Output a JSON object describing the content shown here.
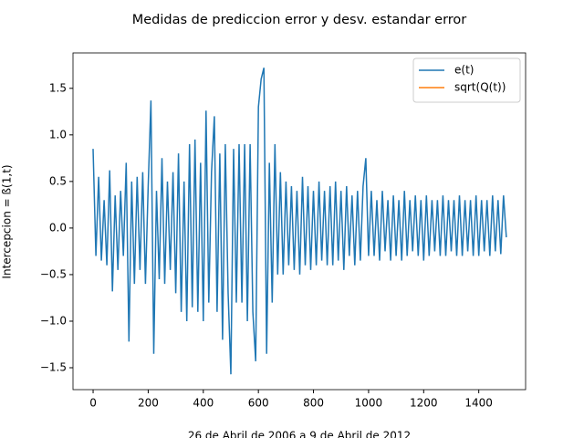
{
  "chart_data": {
    "type": "line",
    "title": "Medidas de prediccion error y desv. estandar error",
    "xlabel": "26 de Abril de 2006 a 9 de Abril de 2012",
    "ylabel": "Intercepcion = ß(1,t)",
    "legend": "upper right",
    "grid": false,
    "xlim": [
      -73,
      1570
    ],
    "ylim": [
      -1.735,
      1.88
    ],
    "xticks": [
      0,
      200,
      400,
      600,
      800,
      1000,
      1200,
      1400
    ],
    "yticks": [
      {
        "value": -1.5,
        "label": "−1.5"
      },
      {
        "value": -1,
        "label": "−1.0"
      },
      {
        "value": -0.5,
        "label": "−0.5"
      },
      {
        "value": 0,
        "label": "0.0"
      },
      0.5,
      {
        "value": 1,
        "label": "1.0"
      },
      1.5
    ],
    "series": [
      {
        "name": "e(t)",
        "color": "#1f77b4",
        "x": [
          0,
          10,
          20,
          30,
          40,
          50,
          60,
          70,
          80,
          90,
          100,
          110,
          120,
          130,
          140,
          150,
          160,
          170,
          180,
          190,
          200,
          210,
          220,
          230,
          240,
          250,
          260,
          270,
          280,
          290,
          300,
          310,
          320,
          330,
          340,
          350,
          360,
          370,
          380,
          390,
          400,
          410,
          420,
          430,
          440,
          450,
          460,
          470,
          480,
          490,
          500,
          510,
          520,
          530,
          540,
          550,
          560,
          570,
          580,
          590,
          600,
          610,
          620,
          630,
          640,
          650,
          660,
          670,
          680,
          690,
          700,
          710,
          720,
          730,
          740,
          750,
          760,
          770,
          780,
          790,
          800,
          810,
          820,
          830,
          840,
          850,
          860,
          870,
          880,
          890,
          900,
          910,
          920,
          930,
          940,
          950,
          960,
          970,
          980,
          990,
          1000,
          1010,
          1020,
          1030,
          1040,
          1050,
          1060,
          1070,
          1080,
          1090,
          1100,
          1110,
          1120,
          1130,
          1140,
          1150,
          1160,
          1170,
          1180,
          1190,
          1200,
          1210,
          1220,
          1230,
          1240,
          1250,
          1260,
          1270,
          1280,
          1290,
          1300,
          1310,
          1320,
          1330,
          1340,
          1350,
          1360,
          1370,
          1380,
          1390,
          1400,
          1410,
          1420,
          1430,
          1440,
          1450,
          1460,
          1470,
          1480,
          1490,
          1500
        ],
        "values": [
          0.85,
          -0.3,
          0.55,
          -0.35,
          0.3,
          -0.4,
          0.62,
          -0.68,
          0.35,
          -0.45,
          0.4,
          -0.3,
          0.7,
          -1.22,
          0.5,
          -0.6,
          0.55,
          -0.45,
          0.6,
          -0.6,
          0.45,
          1.37,
          -1.35,
          0.4,
          -0.55,
          0.75,
          -0.6,
          0.5,
          -0.45,
          0.6,
          -0.7,
          0.8,
          -0.9,
          0.5,
          -1.0,
          0.9,
          -0.85,
          0.95,
          -0.9,
          0.7,
          -1.0,
          1.26,
          -0.8,
          0.6,
          1.2,
          -0.9,
          0.8,
          -1.2,
          0.9,
          -0.7,
          -1.57,
          0.85,
          -0.8,
          0.9,
          -0.8,
          0.9,
          -1.0,
          0.9,
          -0.9,
          -1.43,
          1.3,
          1.6,
          1.72,
          -1.35,
          0.7,
          -0.8,
          0.9,
          -0.5,
          0.6,
          -0.5,
          0.5,
          -0.4,
          0.45,
          -0.45,
          0.4,
          -0.5,
          0.55,
          -0.4,
          0.45,
          -0.45,
          0.4,
          -0.4,
          0.5,
          -0.35,
          0.4,
          -0.4,
          0.45,
          -0.4,
          0.5,
          -0.35,
          0.4,
          -0.45,
          0.45,
          -0.3,
          0.35,
          -0.4,
          0.4,
          -0.35,
          0.45,
          0.75,
          -0.3,
          0.4,
          -0.3,
          0.3,
          -0.35,
          0.4,
          -0.25,
          0.3,
          -0.35,
          0.35,
          -0.3,
          0.3,
          -0.35,
          0.4,
          -0.3,
          0.3,
          -0.25,
          0.35,
          -0.3,
          0.3,
          -0.35,
          0.35,
          -0.3,
          0.3,
          -0.25,
          0.3,
          -0.3,
          0.35,
          -0.3,
          0.3,
          -0.25,
          0.3,
          -0.3,
          0.35,
          -0.3,
          0.3,
          -0.25,
          0.3,
          -0.3,
          0.35,
          -0.3,
          0.3,
          -0.25,
          0.3,
          -0.3,
          0.35,
          -0.25,
          0.3,
          -0.28,
          0.35,
          -0.1
        ]
      },
      {
        "name": "sqrt(Q(t))",
        "color": "#ff7f0e",
        "x": [],
        "values": []
      }
    ]
  }
}
